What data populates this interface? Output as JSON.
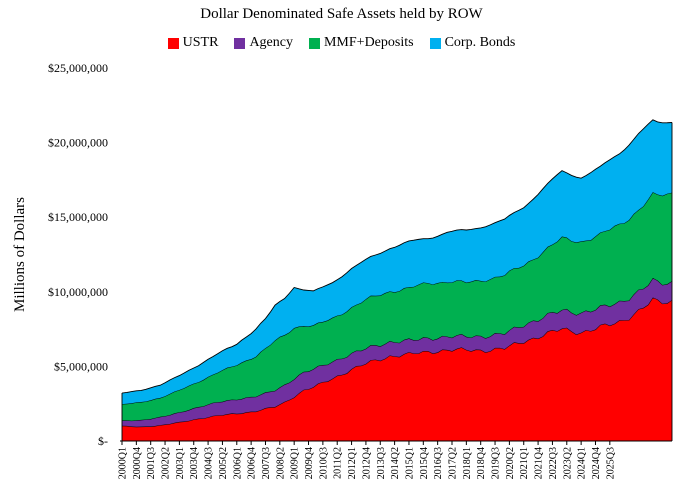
{
  "chart_data": {
    "type": "area",
    "stacked": true,
    "title": "Dollar Denominated Safe Assets held by ROW",
    "xlabel": "",
    "ylabel": "Millions of Dollars",
    "ylim": [
      0,
      25000000
    ],
    "yticks": [
      0,
      5000000,
      10000000,
      15000000,
      20000000,
      25000000
    ],
    "ytick_labels": [
      "$-",
      "$5,000,000",
      "$10,000,000",
      "$15,000,000",
      "$20,000,000",
      "$25,000,000"
    ],
    "grid": false,
    "legend_position": "top-center",
    "x_tick_labels": [
      "2000Q1",
      "2000Q4",
      "2001Q3",
      "2002Q2",
      "2003Q1",
      "2003Q4",
      "2004Q3",
      "2005Q2",
      "2006Q1",
      "2006Q4",
      "2007Q3",
      "2008Q2",
      "2009Q1",
      "2009Q4",
      "2010Q3",
      "2011Q2",
      "2012Q1",
      "2012Q4",
      "2013Q3",
      "2014Q2",
      "2015Q1",
      "2015Q4",
      "2016Q3",
      "2017Q2",
      "2018Q1",
      "2018Q4",
      "2019Q3",
      "2020Q2",
      "2021Q1",
      "2021Q4",
      "2022Q3",
      "2023Q2",
      "2024Q1",
      "2024Q4",
      "2025Q3"
    ],
    "series": [
      {
        "name": "USTR",
        "color": "#FF0000",
        "anchors": [
          [
            0,
            1000000
          ],
          [
            4,
            950000
          ],
          [
            8,
            1050000
          ],
          [
            12,
            1250000
          ],
          [
            16,
            1500000
          ],
          [
            20,
            1700000
          ],
          [
            24,
            1850000
          ],
          [
            28,
            2000000
          ],
          [
            32,
            2300000
          ],
          [
            34,
            2600000
          ],
          [
            36,
            3000000
          ],
          [
            38,
            3400000
          ],
          [
            40,
            3600000
          ],
          [
            44,
            4200000
          ],
          [
            48,
            4800000
          ],
          [
            52,
            5300000
          ],
          [
            56,
            5700000
          ],
          [
            60,
            5800000
          ],
          [
            64,
            6000000
          ],
          [
            68,
            6100000
          ],
          [
            72,
            6100000
          ],
          [
            76,
            6100000
          ],
          [
            80,
            6200000
          ],
          [
            84,
            6700000
          ],
          [
            88,
            7100000
          ],
          [
            92,
            7500000
          ],
          [
            96,
            7300000
          ],
          [
            100,
            7600000
          ],
          [
            104,
            8000000
          ],
          [
            108,
            8700000
          ],
          [
            111,
            9400000
          ],
          [
            112,
            9300000
          ],
          [
            115,
            9400000
          ]
        ]
      },
      {
        "name": "Agency",
        "color": "#7030A0",
        "anchors": [
          [
            0,
            350000
          ],
          [
            10,
            600000
          ],
          [
            20,
            900000
          ],
          [
            28,
            1000000
          ],
          [
            32,
            1100000
          ],
          [
            36,
            1200000
          ],
          [
            40,
            1200000
          ],
          [
            48,
            1050000
          ],
          [
            56,
            950000
          ],
          [
            64,
            900000
          ],
          [
            72,
            900000
          ],
          [
            80,
            1000000
          ],
          [
            88,
            1200000
          ],
          [
            96,
            1300000
          ],
          [
            104,
            1300000
          ],
          [
            112,
            1300000
          ],
          [
            115,
            1250000
          ]
        ]
      },
      {
        "name": "MMF+Deposits",
        "color": "#00B050",
        "anchors": [
          [
            0,
            1100000
          ],
          [
            8,
            1300000
          ],
          [
            16,
            1700000
          ],
          [
            24,
            2300000
          ],
          [
            28,
            2700000
          ],
          [
            32,
            3300000
          ],
          [
            36,
            3400000
          ],
          [
            40,
            2900000
          ],
          [
            44,
            2900000
          ],
          [
            48,
            3100000
          ],
          [
            52,
            3300000
          ],
          [
            56,
            3400000
          ],
          [
            60,
            3500000
          ],
          [
            64,
            3700000
          ],
          [
            68,
            3700000
          ],
          [
            72,
            3600000
          ],
          [
            76,
            3800000
          ],
          [
            80,
            3900000
          ],
          [
            84,
            4000000
          ],
          [
            88,
            4400000
          ],
          [
            92,
            4800000
          ],
          [
            96,
            4800000
          ],
          [
            100,
            4900000
          ],
          [
            104,
            5200000
          ],
          [
            108,
            5500000
          ],
          [
            112,
            5800000
          ],
          [
            115,
            6000000
          ]
        ]
      },
      {
        "name": "Corp. Bonds",
        "color": "#00B0F0",
        "anchors": [
          [
            0,
            750000
          ],
          [
            8,
            850000
          ],
          [
            16,
            1100000
          ],
          [
            24,
            1400000
          ],
          [
            30,
            2000000
          ],
          [
            32,
            2350000
          ],
          [
            34,
            2500000
          ],
          [
            36,
            2700000
          ],
          [
            38,
            2400000
          ],
          [
            40,
            2300000
          ],
          [
            44,
            2400000
          ],
          [
            48,
            2600000
          ],
          [
            52,
            2700000
          ],
          [
            56,
            2900000
          ],
          [
            60,
            3100000
          ],
          [
            64,
            3000000
          ],
          [
            68,
            3300000
          ],
          [
            72,
            3500000
          ],
          [
            76,
            3600000
          ],
          [
            80,
            3700000
          ],
          [
            84,
            3900000
          ],
          [
            88,
            4200000
          ],
          [
            92,
            4500000
          ],
          [
            96,
            4300000
          ],
          [
            100,
            4500000
          ],
          [
            104,
            4800000
          ],
          [
            108,
            5100000
          ],
          [
            112,
            4900000
          ],
          [
            115,
            4800000
          ]
        ]
      }
    ]
  }
}
